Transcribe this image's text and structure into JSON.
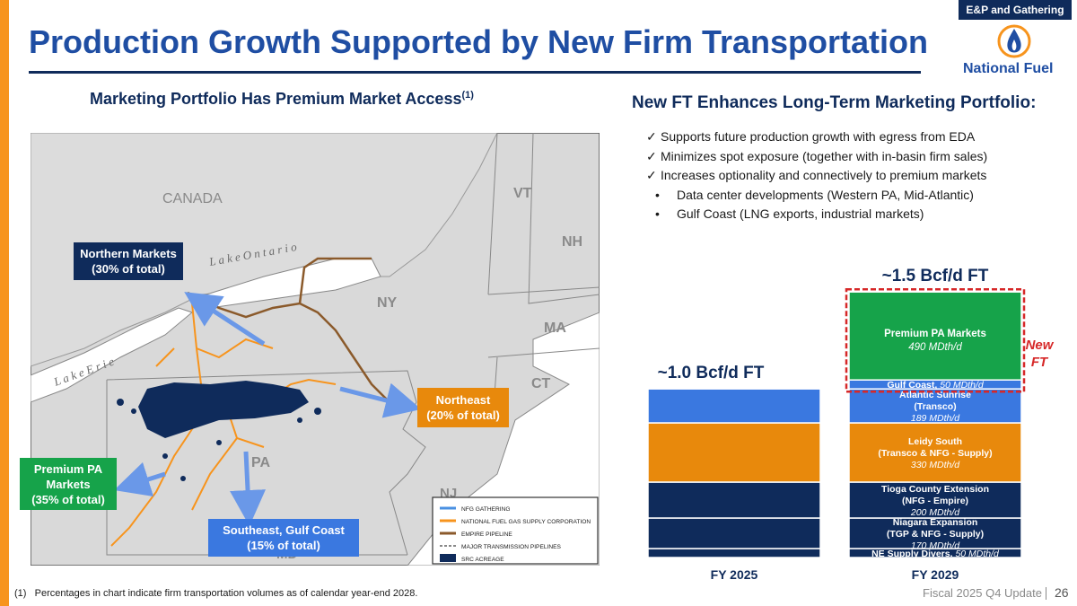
{
  "header": {
    "section_tag": "E&P and Gathering",
    "title": "Production Growth Supported by New Firm Transportation",
    "logo_text": "National Fuel",
    "brand_blue": "#1f4ea3",
    "brand_navy": "#0f2b5b",
    "accent_orange": "#f7941d"
  },
  "left": {
    "heading": "Marketing Portfolio Has Premium Market Access",
    "heading_sup": "(1)",
    "map": {
      "labels": {
        "canada": "CANADA",
        "lake_ontario": "L a k e   O n t a r i o",
        "lake_erie": "L a k e   E r i e",
        "vt": "VT",
        "nh": "NH",
        "ny": "NY",
        "ma": "MA",
        "ct": "CT",
        "pa": "PA",
        "nj": "NJ",
        "md": "MD"
      },
      "legend": [
        "NFG GATHERING",
        "NATIONAL FUEL GAS SUPPLY CORPORATION",
        "EMPIRE PIPELINE",
        "MAJOR TRANSMISSION PIPELINES",
        "SRC ACREAGE"
      ],
      "legend_colors": [
        "#4a90e2",
        "#f7941d",
        "#8b5a2b",
        "#888888",
        "#0f2b5b"
      ]
    },
    "callouts": {
      "northern": "Northern Markets\n(30% of total)",
      "northeast": "Northeast\n(20% of total)",
      "premium_pa": "Premium PA\nMarkets\n(35% of total)",
      "southeast": "Southeast, Gulf Coast\n(15% of total)"
    },
    "callout_colors": {
      "northern": "#0f2b5b",
      "northeast": "#e8890c",
      "premium_pa": "#16a34a",
      "southeast": "#3a78e0"
    }
  },
  "right": {
    "heading": "New FT Enhances Long-Term Marketing Portfolio:",
    "checks": [
      "Supports future production growth with egress from EDA",
      "Minimizes spot exposure (together with in-basin firm sales)",
      "Increases optionality and connectively to premium markets"
    ],
    "subbullets": [
      "Data center developments (Western PA, Mid-Atlantic)",
      "Gulf Coast (LNG exports, industrial markets)"
    ],
    "check_glyph": "✓",
    "dot_glyph": "•"
  },
  "chart_data": {
    "type": "bar",
    "stacked": true,
    "unit": "MDth/d",
    "categories": [
      "FY 2025",
      "FY 2029"
    ],
    "totals_labels": [
      "~1.0 Bcf/d FT",
      "~1.5 Bcf/d FT"
    ],
    "ylim": [
      0,
      1600
    ],
    "fy2025_segments": [
      {
        "value": 50,
        "color": "#0f2b5b"
      },
      {
        "value": 170,
        "color": "#0f2b5b"
      },
      {
        "value": 200,
        "color": "#0f2b5b"
      },
      {
        "value": 330,
        "color": "#e8890c"
      },
      {
        "value": 189,
        "color": "#3a78e0"
      }
    ],
    "fy2029_segments": [
      {
        "name": "NE Supply Divers.",
        "detail": "",
        "value_text": "50 MDth/d",
        "value": 50,
        "color": "#0f2b5b"
      },
      {
        "name": "Niagara Expansion",
        "detail": "(TGP & NFG - Supply)",
        "value_text": "170 MDth/d",
        "value": 170,
        "color": "#0f2b5b"
      },
      {
        "name": "Tioga County Extension",
        "detail": "(NFG - Empire)",
        "value_text": "200 MDth/d",
        "value": 200,
        "color": "#0f2b5b"
      },
      {
        "name": "Leidy South",
        "detail": "(Transco & NFG - Supply)",
        "value_text": "330 MDth/d",
        "value": 330,
        "color": "#e8890c"
      },
      {
        "name": "Atlantic Sunrise",
        "detail": "(Transco)",
        "value_text": "189 MDth/d",
        "value": 189,
        "color": "#3a78e0"
      },
      {
        "name": "Gulf Coast,",
        "detail": "",
        "value_text": "50 MDth/d",
        "value": 50,
        "color": "#3a78e0"
      },
      {
        "name": "Premium PA Markets",
        "detail": "",
        "value_text": "490 MDth/d",
        "value": 490,
        "color": "#16a34a"
      }
    ],
    "new_ft_label": "New FT",
    "new_ft_color": "#d62828"
  },
  "footer": {
    "footnote_marker": "(1)",
    "footnote": "Percentages in chart indicate firm transportation volumes as of calendar year-end 2028.",
    "label": "Fiscal 2025 Q4 Update",
    "page_number": "26"
  }
}
